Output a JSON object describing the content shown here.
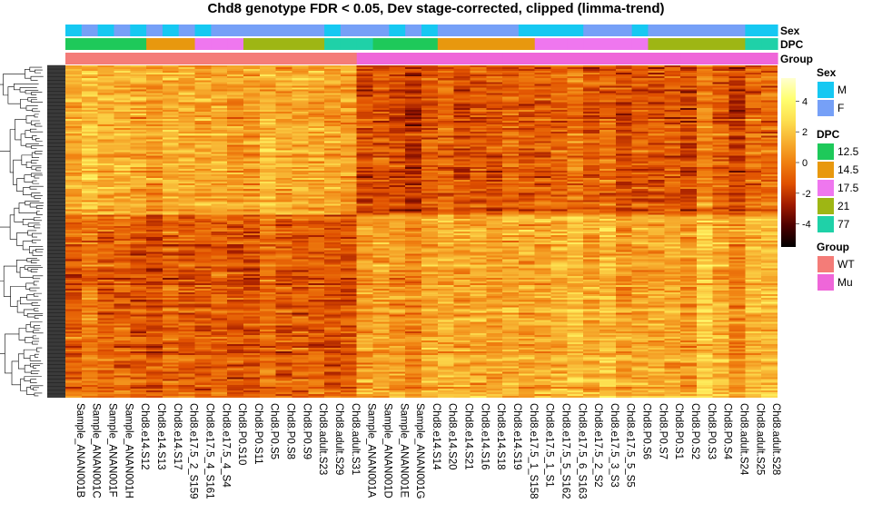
{
  "chart_data": {
    "type": "heatmap",
    "title": "Chd8 genotype FDR < 0.05, Dev stage-corrected, clipped (limma-trend)",
    "columns": [
      "Sample_ANAN001B",
      "Sample_ANAN001C",
      "Sample_ANAN001F",
      "Sample_ANAN001H",
      "Chd8.e14.S12",
      "Chd8.e14.S13",
      "Chd8.e14.S17",
      "Chd8.e17.5_2_S159",
      "Chd8.e17.5_4_S161",
      "Chd8.e17.5_4_S4",
      "Chd8.P0.S10",
      "Chd8.P0.S11",
      "Chd8.P0.S5",
      "Chd8.P0.S8",
      "Chd8.P0.S9",
      "Chd8.adult.S23",
      "Chd8.adult.S29",
      "Chd8.adult.S31",
      "Sample_ANAN001A",
      "Sample_ANAN001D",
      "Sample_ANAN001E",
      "Sample_ANAN001G",
      "Chd8.e14.S14",
      "Chd8.e14.S20",
      "Chd8.e14.S21",
      "Chd8.e14.S16",
      "Chd8.e14.S18",
      "Chd8.e14.S19",
      "Chd8.e17.5_1_S158",
      "Chd8.e17.5_1_S1",
      "Chd8.e17.5_5_S162",
      "Chd8.e17.5_6_S163",
      "Chd8.e17.5_2_S2",
      "Chd8.e17.5_3_S3",
      "Chd8.e17.5_5_S5",
      "Chd8.P0.S6",
      "Chd8.P0.S7",
      "Chd8.P0.S1",
      "Chd8.P0.S2",
      "Chd8.P0.S3",
      "Chd8.P0.S4",
      "Chd8.adult.S24",
      "Chd8.adult.S25",
      "Chd8.adult.S28"
    ],
    "annotations": {
      "Sex": [
        "M",
        "F",
        "M",
        "F",
        "M",
        "F",
        "M",
        "F",
        "M",
        "F",
        "F",
        "F",
        "F",
        "F",
        "F",
        "F",
        "M",
        "F",
        "F",
        "F",
        "M",
        "F",
        "M",
        "F",
        "F",
        "F",
        "F",
        "F",
        "M",
        "M",
        "M",
        "M",
        "F",
        "F",
        "F",
        "M",
        "F",
        "F",
        "F",
        "F",
        "F",
        "F",
        "M",
        "M"
      ],
      "DPC": [
        "12.5",
        "12.5",
        "12.5",
        "12.5",
        "12.5",
        "14.5",
        "14.5",
        "14.5",
        "17.5",
        "17.5",
        "17.5",
        "21",
        "21",
        "21",
        "21",
        "21",
        "77",
        "77",
        "77",
        "12.5",
        "12.5",
        "12.5",
        "12.5",
        "14.5",
        "14.5",
        "14.5",
        "14.5",
        "14.5",
        "14.5",
        "17.5",
        "17.5",
        "17.5",
        "17.5",
        "17.5",
        "17.5",
        "17.5",
        "21",
        "21",
        "21",
        "21",
        "21",
        "21",
        "77",
        "77"
      ],
      "Group": [
        "WT",
        "WT",
        "WT",
        "WT",
        "WT",
        "WT",
        "WT",
        "WT",
        "WT",
        "WT",
        "WT",
        "WT",
        "WT",
        "WT",
        "WT",
        "WT",
        "WT",
        "WT",
        "Mu",
        "Mu",
        "Mu",
        "Mu",
        "Mu",
        "Mu",
        "Mu",
        "Mu",
        "Mu",
        "Mu",
        "Mu",
        "Mu",
        "Mu",
        "Mu",
        "Mu",
        "Mu",
        "Mu",
        "Mu",
        "Mu",
        "Mu",
        "Mu",
        "Mu",
        "Mu",
        "Mu",
        "Mu",
        "Mu"
      ]
    },
    "annotation_labels": {
      "sex": "Sex",
      "dpc": "DPC",
      "group": "Group"
    },
    "legends": {
      "sex": {
        "title": "Sex",
        "items": [
          {
            "label": "M",
            "color": "#16c8f2"
          },
          {
            "label": "F",
            "color": "#76a0f7"
          }
        ]
      },
      "dpc": {
        "title": "DPC",
        "items": [
          {
            "label": "12.5",
            "color": "#1ec95a"
          },
          {
            "label": "14.5",
            "color": "#e8980e"
          },
          {
            "label": "17.5",
            "color": "#ef77ef"
          },
          {
            "label": "21",
            "color": "#9eb614"
          },
          {
            "label": "77",
            "color": "#1fd1a8"
          }
        ]
      },
      "group": {
        "title": "Group",
        "items": [
          {
            "label": "WT",
            "color": "#f47c78"
          },
          {
            "label": "Mu",
            "color": "#ef66d9"
          }
        ]
      }
    },
    "color_scale": {
      "min": -5.5,
      "max": 5.5,
      "ticks": [
        4,
        2,
        0,
        -2,
        -4
      ],
      "colors": [
        "#000000",
        "#4b0000",
        "#a01a00",
        "#e05000",
        "#f08010",
        "#f7b030",
        "#fde050",
        "#ffff70",
        "#ffffd0"
      ]
    },
    "n_rows": 180,
    "dendrogram": "row",
    "legend_placement": "right"
  }
}
